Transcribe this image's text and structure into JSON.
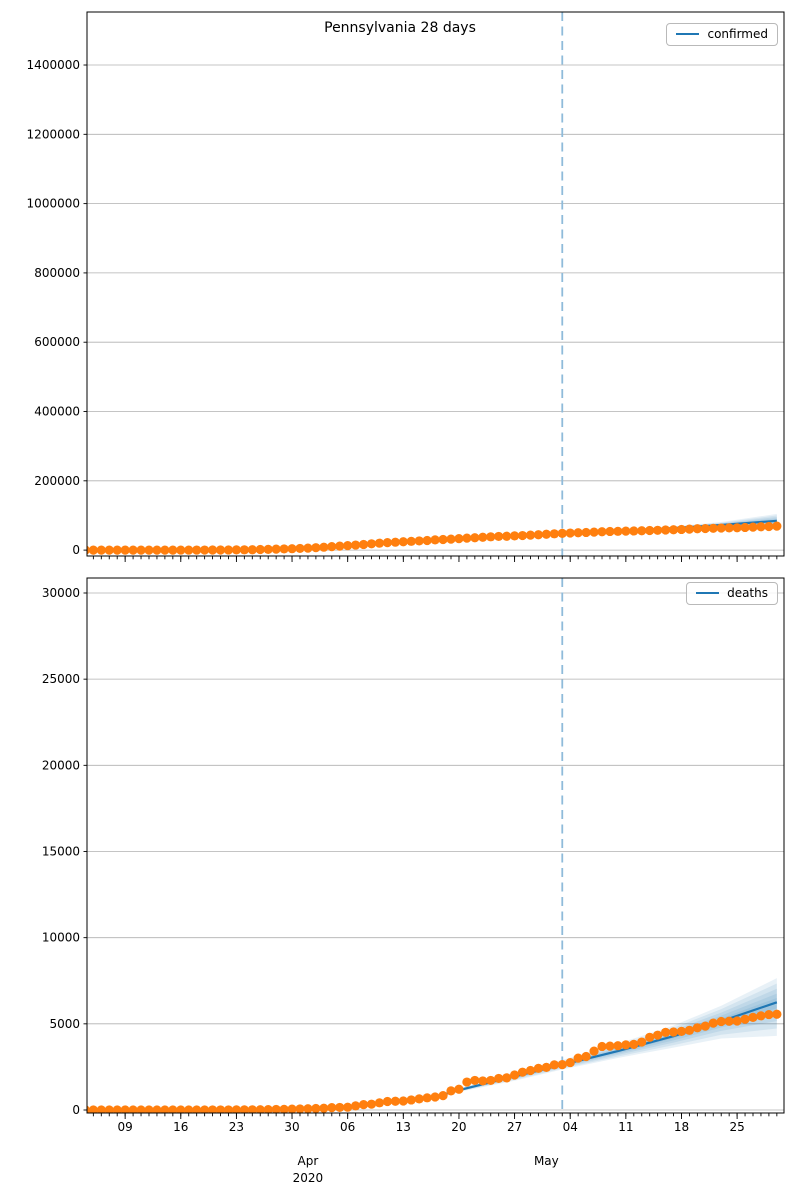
{
  "title": "Pennsylvania 28 days",
  "colors": {
    "dots": "#ff7f0e",
    "model_line": "#1f77b4",
    "band": "#1f77b4",
    "vline": "#8fbbda",
    "grid": "#b0b0b0",
    "axis": "#000000",
    "text": "#000000"
  },
  "x_axis": {
    "start_date": "2020-03-04",
    "xlim_days": [
      0.2,
      87.9
    ],
    "minor_tick_days": 1,
    "major_ticks": [
      {
        "day": 5,
        "label": "09"
      },
      {
        "day": 12,
        "label": "16"
      },
      {
        "day": 19,
        "label": "23"
      },
      {
        "day": 26,
        "label": "30"
      },
      {
        "day": 33,
        "label": "06"
      },
      {
        "day": 40,
        "label": "13"
      },
      {
        "day": 47,
        "label": "20"
      },
      {
        "day": 54,
        "label": "27"
      },
      {
        "day": 61,
        "label": "04"
      },
      {
        "day": 68,
        "label": "11"
      },
      {
        "day": 75,
        "label": "18"
      },
      {
        "day": 82,
        "label": "25"
      }
    ],
    "month_labels": [
      {
        "day": 28,
        "label": "Apr",
        "sub": "2020"
      },
      {
        "day": 58,
        "label": "May"
      }
    ],
    "forecast_start_day": 60,
    "forecast_length_days": 28
  },
  "chart_data": [
    {
      "type": "scatter",
      "title": "Pennsylvania 28 days",
      "series_name": "confirmed",
      "legend_label": "confirmed",
      "legend_position": "upper right",
      "grid": "horizontal",
      "ylim": [
        -17000,
        1553000
      ],
      "yticks": [
        0,
        200000,
        400000,
        600000,
        800000,
        1000000,
        1200000,
        1400000
      ],
      "ytick_labels": [
        "0",
        "200000",
        "400000",
        "600000",
        "800000",
        "1000000",
        "1200000",
        "1400000"
      ],
      "dots_start_day": 0,
      "dots": [
        0,
        0,
        0,
        2,
        4,
        10,
        12,
        16,
        22,
        41,
        47,
        63,
        76,
        96,
        133,
        185,
        268,
        371,
        479,
        644,
        851,
        1127,
        1687,
        2218,
        2751,
        3394,
        4087,
        4843,
        5805,
        7016,
        8420,
        10017,
        11510,
        12980,
        14559,
        16239,
        18228,
        19979,
        21655,
        22833,
        24199,
        25345,
        26490,
        27735,
        29441,
        30597,
        31652,
        33232,
        34528,
        35684,
        37053,
        38379,
        39490,
        40049,
        41165,
        42050,
        43264,
        44366,
        45763,
        47037,
        48305,
        49267,
        50092,
        50957,
        51845,
        52915,
        53864,
        54238,
        54712,
        55316,
        55956,
        56611,
        57154,
        57991,
        58698,
        59636,
        60459,
        61611,
        62234,
        62936,
        63666,
        64136,
        64412,
        65392,
        66258,
        67311,
        68186,
        69252
      ],
      "model": {
        "x": [
          44,
          47,
          54,
          60,
          67,
          74,
          80,
          87
        ],
        "mean": [
          29800,
          32600,
          40600,
          47600,
          55500,
          63500,
          72500,
          84500
        ],
        "lower": [
          29400,
          31900,
          39200,
          45800,
          52500,
          59000,
          64000,
          64500
        ],
        "upper": [
          30200,
          33300,
          42000,
          49400,
          58500,
          68000,
          81000,
          104500
        ]
      },
      "band_levels": [
        1,
        0.78,
        0.56,
        0.36,
        0.18
      ]
    },
    {
      "type": "scatter",
      "title": "",
      "series_name": "deaths",
      "legend_label": "deaths",
      "legend_position": "upper right",
      "grid": "horizontal",
      "ylim": [
        -174,
        30870
      ],
      "yticks": [
        0,
        5000,
        10000,
        15000,
        20000,
        25000,
        30000
      ],
      "ytick_labels": [
        "0",
        "5000",
        "10000",
        "15000",
        "20000",
        "25000",
        "30000"
      ],
      "dots_start_day": 0,
      "dots": [
        0,
        0,
        0,
        0,
        0,
        0,
        0,
        0,
        0,
        1,
        1,
        1,
        1,
        2,
        2,
        3,
        4,
        5,
        5,
        6,
        7,
        11,
        16,
        22,
        34,
        38,
        49,
        63,
        74,
        90,
        102,
        136,
        150,
        162,
        240,
        310,
        338,
        416,
        494,
        507,
        524,
        584,
        647,
        707,
        756,
        836,
        1112,
        1204,
        1622,
        1716,
        1687,
        1716,
        1832,
        1864,
        2029,
        2195,
        2292,
        2418,
        2475,
        2617,
        2635,
        2752,
        3012,
        3106,
        3416,
        3688,
        3707,
        3731,
        3779,
        3806,
        3943,
        4218,
        4342,
        4505,
        4524,
        4563,
        4624,
        4770,
        4869,
        5042,
        5136,
        5152,
        5163,
        5265,
        5373,
        5464,
        5537,
        5555
      ],
      "model": {
        "x": [
          44,
          47,
          54,
          60,
          67,
          74,
          80,
          87
        ],
        "mean": [
          760,
          1150,
          1950,
          2620,
          3420,
          4280,
          5150,
          6250
        ],
        "lower": [
          730,
          1050,
          1700,
          2350,
          3020,
          3620,
          4150,
          4300
        ],
        "upper": [
          790,
          1250,
          2200,
          2900,
          3850,
          4900,
          6050,
          7650
        ]
      },
      "band_levels": [
        1,
        0.78,
        0.56,
        0.36,
        0.18
      ]
    }
  ]
}
